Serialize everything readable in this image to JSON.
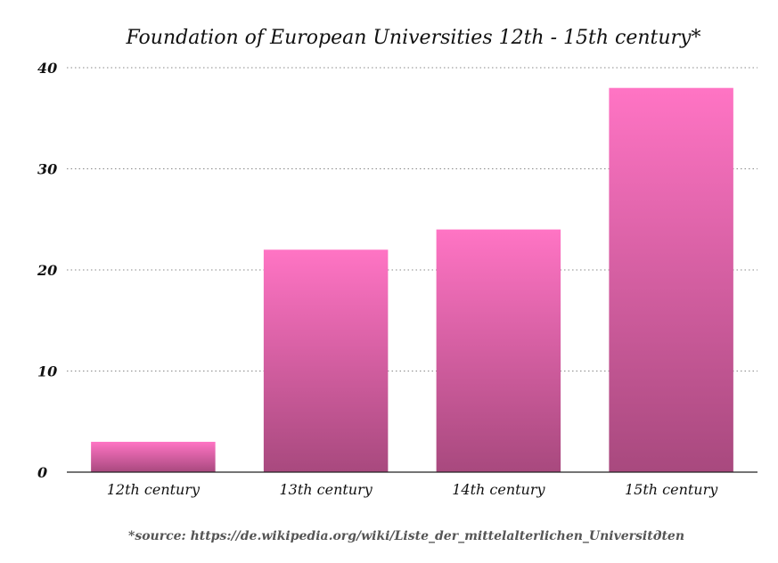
{
  "chart_data": {
    "type": "bar",
    "title": "Foundation of European Universities 12th - 15th century*",
    "categories": [
      "12th century",
      "13th century",
      "14th century",
      "15th century"
    ],
    "values": [
      3,
      22,
      24,
      38
    ],
    "xlabel": "",
    "ylabel": "",
    "ylim": [
      0,
      40
    ],
    "yticks": [
      0,
      10,
      20,
      30,
      40
    ],
    "ytick_labels": [
      "0",
      "10",
      "20",
      "30",
      "40"
    ],
    "grid": true,
    "legend": "none",
    "bar_color_top": "#ff74c4",
    "bar_color_bottom": "#a8497e",
    "source_note": "*source: https://de.wikipedia.org/wiki/Liste_der_mittelalterlichen_Universitдten"
  }
}
